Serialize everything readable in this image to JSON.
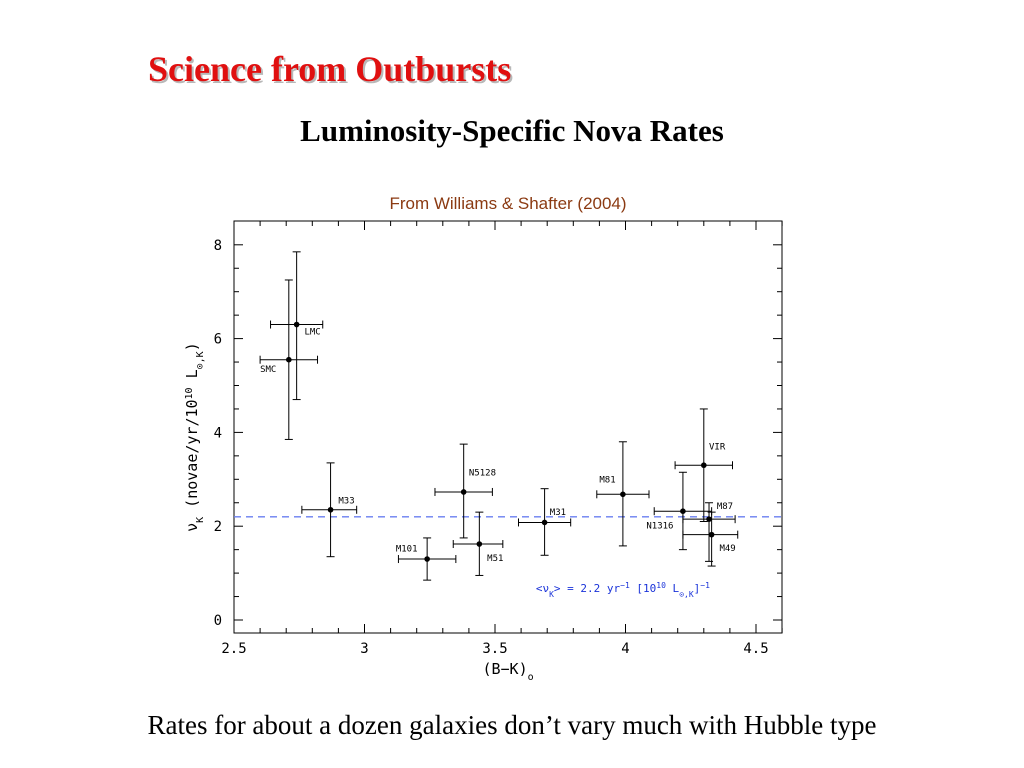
{
  "slide": {
    "title": "Science from Outbursts",
    "subtitle": "Luminosity-Specific Nova Rates",
    "source": "From Williams & Shafter (2004)",
    "caption": "Rates for about a dozen galaxies don’t vary much with Hubble type"
  },
  "colors": {
    "title": "#e01010",
    "mean_line": "#6a7ff0",
    "annotation": "#1a33d9",
    "source": "#8b3a12"
  },
  "chart_data": {
    "type": "scatter",
    "xlabel": "(B−K)",
    "xlabel_subscript": "o",
    "ylabel": "ν",
    "ylabel_subscript": "K",
    "ylabel_rest": " (novae/yr/10",
    "ylabel_exp": "10",
    "ylabel_unit": " L",
    "ylabel_unit_sub": "⊙,K",
    "ylabel_close": ")",
    "xlim": [
      2.5,
      4.6
    ],
    "ylim": [
      -0.25,
      8.5
    ],
    "xticks": [
      2.5,
      3,
      3.5,
      4,
      4.5
    ],
    "xtick_labels": [
      "2.5",
      "3",
      "3.5",
      "4",
      "4.5"
    ],
    "yticks": [
      0,
      2,
      4,
      6,
      8
    ],
    "ytick_labels": [
      "0",
      "2",
      "4",
      "6",
      "8"
    ],
    "grid": false,
    "mean_line": {
      "y": 2.2,
      "style": "dashed"
    },
    "annotation": {
      "pre": "<ν",
      "sub1": "K",
      "mid": "> = 2.2 yr",
      "sup1": "−1",
      "mid2": " [10",
      "sup2": "10",
      "mid3": " L",
      "sub2": "⊙,K",
      "mid4": "]",
      "sup3": "−1"
    },
    "points": [
      {
        "name": "LMC",
        "x": 2.74,
        "y": 6.3,
        "xerr": [
          2.64,
          2.84
        ],
        "yerr": [
          4.7,
          7.85
        ],
        "label_dx": 0.03,
        "label_dy": -0.15
      },
      {
        "name": "SMC",
        "x": 2.71,
        "y": 5.55,
        "xerr": [
          2.6,
          2.82
        ],
        "yerr": [
          3.85,
          7.25
        ],
        "label_dx": -0.11,
        "label_dy": -0.2
      },
      {
        "name": "M33",
        "x": 2.87,
        "y": 2.35,
        "xerr": [
          2.76,
          2.97
        ],
        "yerr": [
          1.35,
          3.35
        ],
        "label_dx": 0.03,
        "label_dy": 0.2
      },
      {
        "name": "M101",
        "x": 3.24,
        "y": 1.3,
        "xerr": [
          3.13,
          3.35
        ],
        "yerr": [
          0.85,
          1.75
        ],
        "label_dx": -0.12,
        "label_dy": 0.22
      },
      {
        "name": "N5128",
        "x": 3.38,
        "y": 2.73,
        "xerr": [
          3.27,
          3.49
        ],
        "yerr": [
          1.75,
          3.75
        ],
        "label_dx": 0.02,
        "label_dy": 0.42
      },
      {
        "name": "M51",
        "x": 3.44,
        "y": 1.62,
        "xerr": [
          3.34,
          3.53
        ],
        "yerr": [
          0.95,
          2.3
        ],
        "label_dx": 0.03,
        "label_dy": -0.3
      },
      {
        "name": "M31",
        "x": 3.69,
        "y": 2.08,
        "xerr": [
          3.59,
          3.79
        ],
        "yerr": [
          1.38,
          2.8
        ],
        "label_dx": 0.02,
        "label_dy": 0.22
      },
      {
        "name": "M81",
        "x": 3.99,
        "y": 2.68,
        "xerr": [
          3.89,
          4.09
        ],
        "yerr": [
          1.58,
          3.8
        ],
        "label_dx": -0.09,
        "label_dy": 0.32
      },
      {
        "name": "VIR",
        "x": 4.3,
        "y": 3.3,
        "xerr": [
          4.19,
          4.41
        ],
        "yerr": [
          2.1,
          4.5
        ],
        "label_dx": 0.02,
        "label_dy": 0.4
      },
      {
        "name": "N1316",
        "x": 4.22,
        "y": 2.32,
        "xerr": [
          4.11,
          4.33
        ],
        "yerr": [
          1.5,
          3.15
        ],
        "label_dx": -0.14,
        "label_dy": -0.3
      },
      {
        "name": "M87",
        "x": 4.32,
        "y": 2.15,
        "xerr": [
          4.22,
          4.42
        ],
        "yerr": [
          1.25,
          2.5
        ],
        "label_dx": 0.03,
        "label_dy": 0.28
      },
      {
        "name": "M49",
        "x": 4.33,
        "y": 1.82,
        "xerr": [
          4.22,
          4.43
        ],
        "yerr": [
          1.15,
          2.3
        ],
        "label_dx": 0.03,
        "label_dy": -0.28
      }
    ]
  }
}
